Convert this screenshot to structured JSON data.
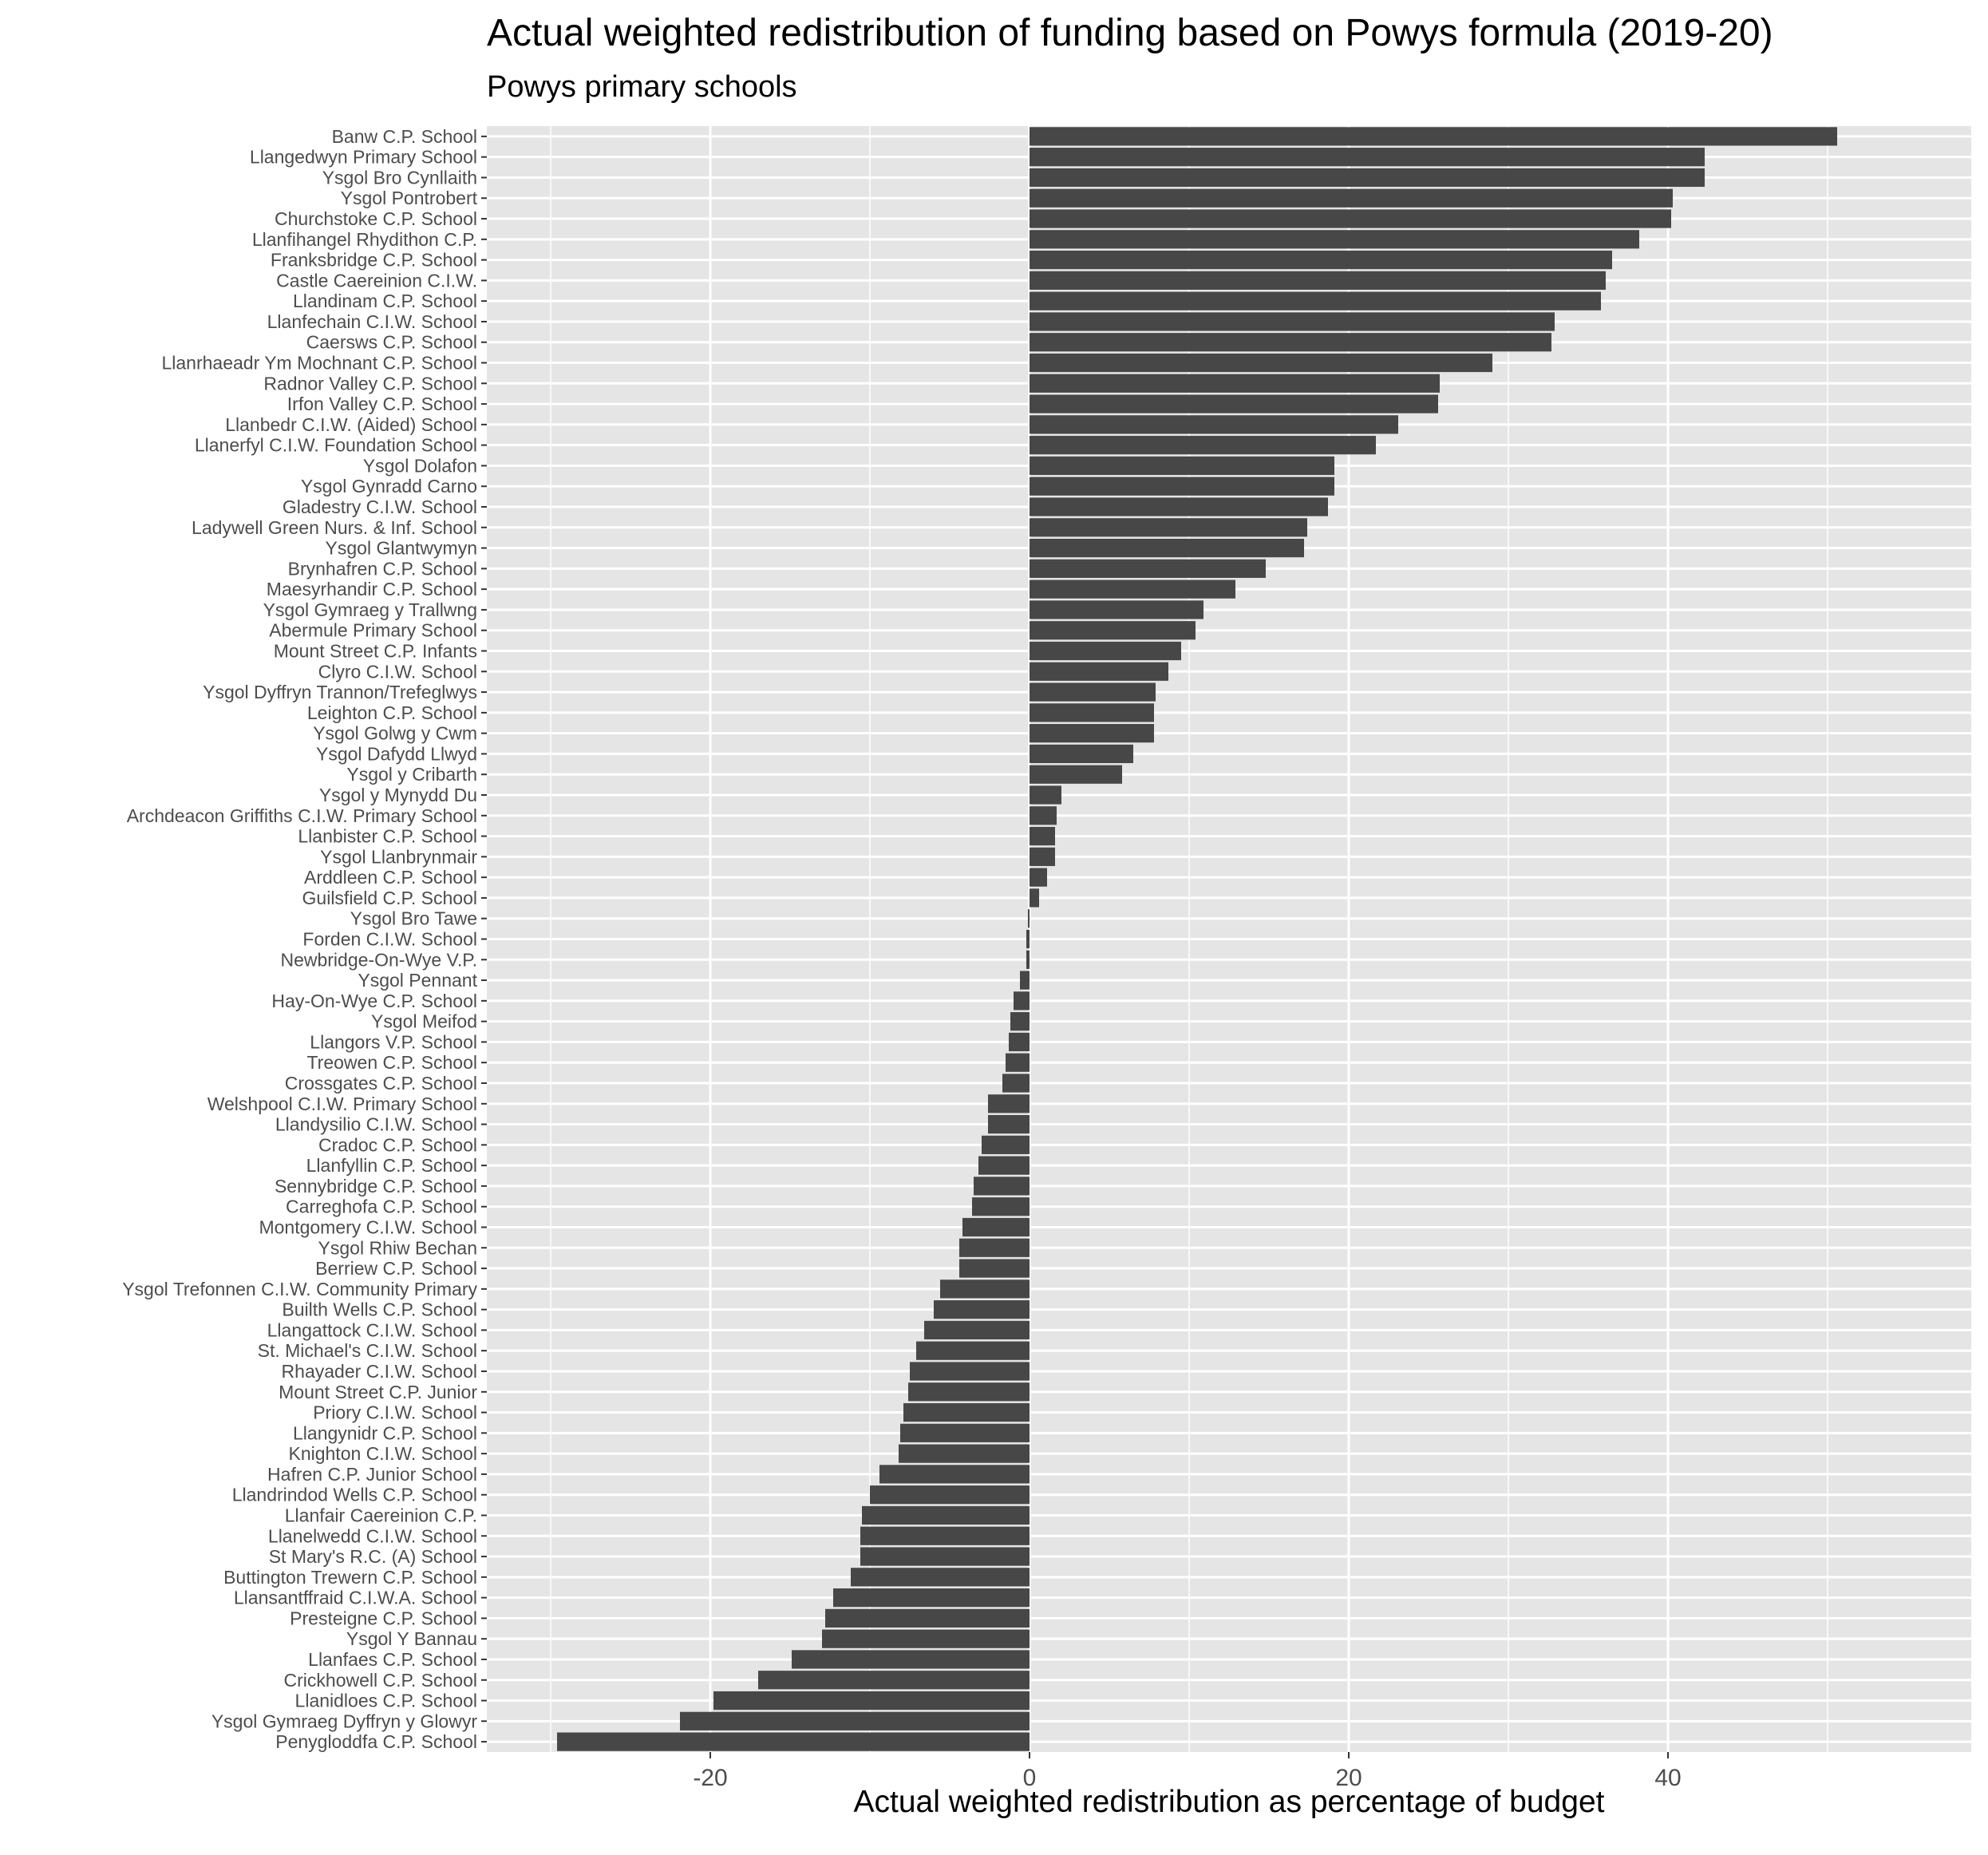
{
  "chart_data": {
    "type": "bar",
    "orientation": "horizontal",
    "title": "Actual weighted redistribution of funding based on Powys formula (2019-20)",
    "subtitle": "Powys primary schools",
    "xlabel": "Actual weighted redistribution as percentage of budget",
    "ylabel": "",
    "xlim": [
      -34,
      59
    ],
    "x_ticks": [
      -20,
      0,
      20,
      40
    ],
    "x_tick_labels": [
      "-20",
      "0",
      "20",
      "40"
    ],
    "grid": true,
    "legend": "none",
    "colors": {
      "bar": "#474747",
      "panel": "#e5e5e5",
      "grid": "#ffffff",
      "tick": "#333333"
    },
    "categories": [
      "Banw C.P. School",
      "Llangedwyn Primary School",
      "Ysgol Bro Cynllaith",
      "Ysgol Pontrobert",
      "Churchstoke C.P. School",
      "Llanfihangel Rhydithon C.P.",
      "Franksbridge C.P. School",
      "Castle Caereinion C.I.W.",
      "Llandinam C.P. School",
      "Llanfechain C.I.W. School",
      "Caersws C.P. School",
      "Llanrhaeadr Ym Mochnant C.P. School",
      "Radnor Valley C.P. School",
      "Irfon Valley C.P. School",
      "Llanbedr C.I.W. (Aided) School",
      "Llanerfyl C.I.W. Foundation School",
      "Ysgol Dolafon",
      "Ysgol Gynradd Carno",
      "Gladestry C.I.W. School",
      "Ladywell Green Nurs. & Inf. School",
      "Ysgol Glantwymyn",
      "Brynhafren C.P. School",
      "Maesyrhandir C.P. School",
      "Ysgol Gymraeg y Trallwng",
      "Abermule Primary School",
      "Mount Street C.P. Infants",
      "Clyro C.I.W. School",
      "Ysgol Dyffryn Trannon/Trefeglwys",
      "Leighton C.P. School",
      "Ysgol Golwg y Cwm",
      "Ysgol Dafydd Llwyd",
      "Ysgol y Cribarth",
      "Ysgol y Mynydd Du",
      "Archdeacon Griffiths C.I.W. Primary School",
      "Llanbister C.P. School",
      "Ysgol Llanbrynmair",
      "Arddleen C.P. School",
      "Guilsfield C.P. School",
      "Ysgol Bro Tawe",
      "Forden C.I.W. School",
      "Newbridge-On-Wye V.P.",
      "Ysgol Pennant",
      "Hay-On-Wye C.P. School",
      "Ysgol Meifod",
      "Llangors V.P. School",
      "Treowen C.P. School",
      "Crossgates C.P. School",
      "Welshpool C.I.W. Primary School",
      "Llandysilio C.I.W. School",
      "Cradoc C.P. School",
      "Llanfyllin C.P. School",
      "Sennybridge C.P. School",
      "Carreghofa C.P. School",
      "Montgomery C.I.W. School",
      "Ysgol Rhiw Bechan",
      "Berriew C.P. School",
      "Ysgol Trefonnen C.I.W. Community Primary",
      "Builth Wells C.P. School",
      "Llangattock C.I.W. School",
      "St. Michael's C.I.W. School",
      "Rhayader C.I.W. School",
      "Mount Street C.P. Junior",
      "Priory C.I.W. School",
      "Llangynidr C.P. School",
      "Knighton C.I.W. School",
      "Hafren C.P. Junior School",
      "Llandrindod Wells C.P. School",
      "Llanfair Caereinion C.P.",
      "Llanelwedd C.I.W. School",
      "St Mary's R.C. (A) School",
      "Buttington Trewern C.P. School",
      "Llansantffraid C.I.W.A. School",
      "Presteigne C.P. School",
      "Ysgol Y Bannau",
      "Llanfaes C.P. School",
      "Crickhowell C.P. School",
      "Llanidloes C.P. School",
      "Ysgol Gymraeg Dyffryn y Glowyr",
      "Penygloddfa C.P. School"
    ],
    "values": [
      50.6,
      42.3,
      42.3,
      40.3,
      40.2,
      38.2,
      36.5,
      36.1,
      35.8,
      32.9,
      32.7,
      29.0,
      25.7,
      25.6,
      23.1,
      21.7,
      19.1,
      19.1,
      18.7,
      17.4,
      17.2,
      14.8,
      12.9,
      10.9,
      10.4,
      9.5,
      8.7,
      7.9,
      7.8,
      7.8,
      6.5,
      5.8,
      2.0,
      1.7,
      1.6,
      1.6,
      1.1,
      0.6,
      -0.1,
      -0.2,
      -0.2,
      -0.6,
      -1.0,
      -1.2,
      -1.3,
      -1.5,
      -1.7,
      -2.6,
      -2.6,
      -3.0,
      -3.2,
      -3.5,
      -3.6,
      -4.2,
      -4.4,
      -4.4,
      -5.6,
      -6.0,
      -6.6,
      -7.1,
      -7.5,
      -7.6,
      -7.9,
      -8.1,
      -8.2,
      -9.4,
      -10.0,
      -10.5,
      -10.6,
      -10.6,
      -11.2,
      -12.3,
      -12.8,
      -13.0,
      -14.9,
      -17.0,
      -19.8,
      -21.9,
      -29.6
    ]
  }
}
